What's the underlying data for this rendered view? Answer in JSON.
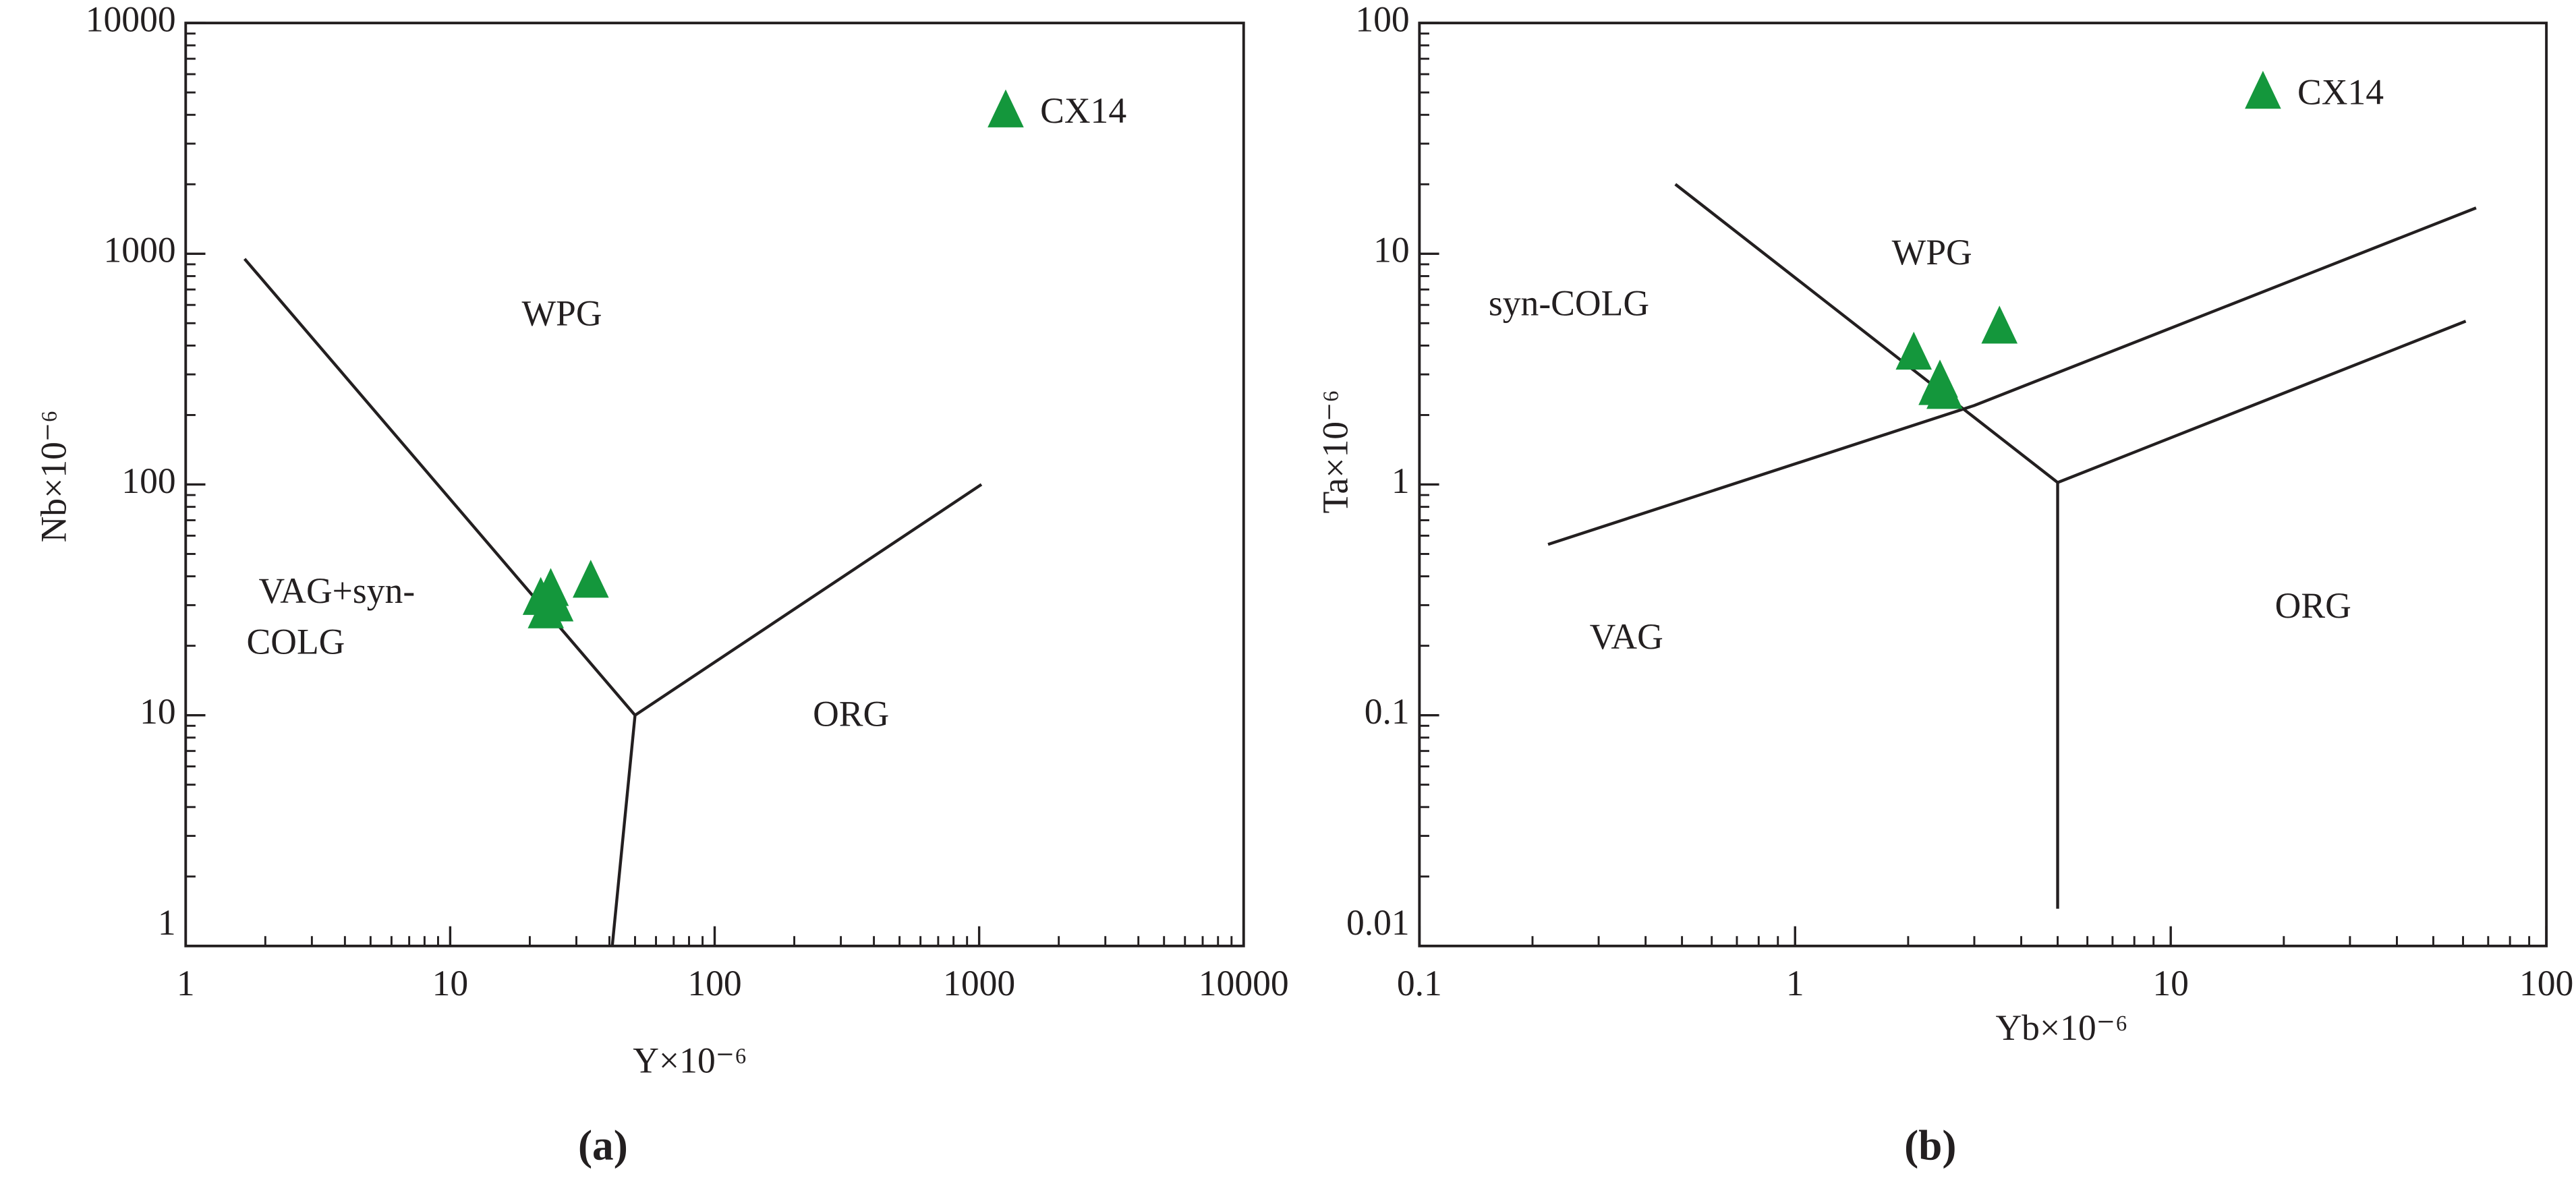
{
  "chart_data": [
    {
      "type": "scatter",
      "log_x": true,
      "log_y": true,
      "xlabel": "Y×10⁻⁶",
      "ylabel": "Nb×10⁻⁶",
      "panel_label": "(a)",
      "xlim": [
        1,
        10000
      ],
      "ylim": [
        1,
        10000
      ],
      "xticks": [
        1,
        10,
        100,
        1000,
        10000
      ],
      "yticks": [
        1,
        10,
        100,
        1000,
        10000
      ],
      "color": "#14973c",
      "x": [
        22,
        24,
        23,
        25,
        34,
        1260
      ],
      "values": [
        32,
        35,
        28,
        30,
        38,
        4150
      ],
      "point_labels": [
        null,
        null,
        null,
        null,
        null,
        "CX14"
      ],
      "boundaries": [
        {
          "x": [
            1.67,
            50,
            41
          ],
          "y": [
            950,
            10,
            1
          ]
        },
        {
          "x": [
            50,
            1020
          ],
          "y": [
            10,
            100
          ]
        }
      ],
      "regions": [
        "WPG",
        "VAG+syn-",
        "COLG",
        "ORG"
      ]
    },
    {
      "type": "scatter",
      "log_x": true,
      "log_y": true,
      "xlabel": "Yb×10⁻⁶",
      "ylabel": "Ta×10⁻⁶",
      "panel_label": "(b)",
      "xlim": [
        0.1,
        100
      ],
      "ylim": [
        0.01,
        100
      ],
      "xticks": [
        0.1,
        1,
        10,
        100
      ],
      "yticks": [
        0.01,
        0.1,
        1,
        10,
        100
      ],
      "color": "#14973c",
      "x": [
        2.07,
        2.43,
        2.5,
        2.38,
        3.5,
        17.6
      ],
      "values": [
        3.7,
        2.8,
        2.5,
        2.6,
        4.8,
        50
      ],
      "point_labels": [
        null,
        null,
        null,
        null,
        null,
        "CX14"
      ],
      "boundaries": [
        {
          "x": [
            0.48,
            5,
            5
          ],
          "y": [
            20,
            1.02,
            0.0145
          ]
        },
        {
          "x": [
            5,
            61
          ],
          "y": [
            1.02,
            5.1
          ]
        },
        {
          "x": [
            0.22,
            3,
            65
          ],
          "y": [
            0.55,
            2.2,
            15.8
          ]
        }
      ],
      "regions": [
        "WPG",
        "syn-COLG",
        "VAG",
        "ORG"
      ]
    }
  ]
}
